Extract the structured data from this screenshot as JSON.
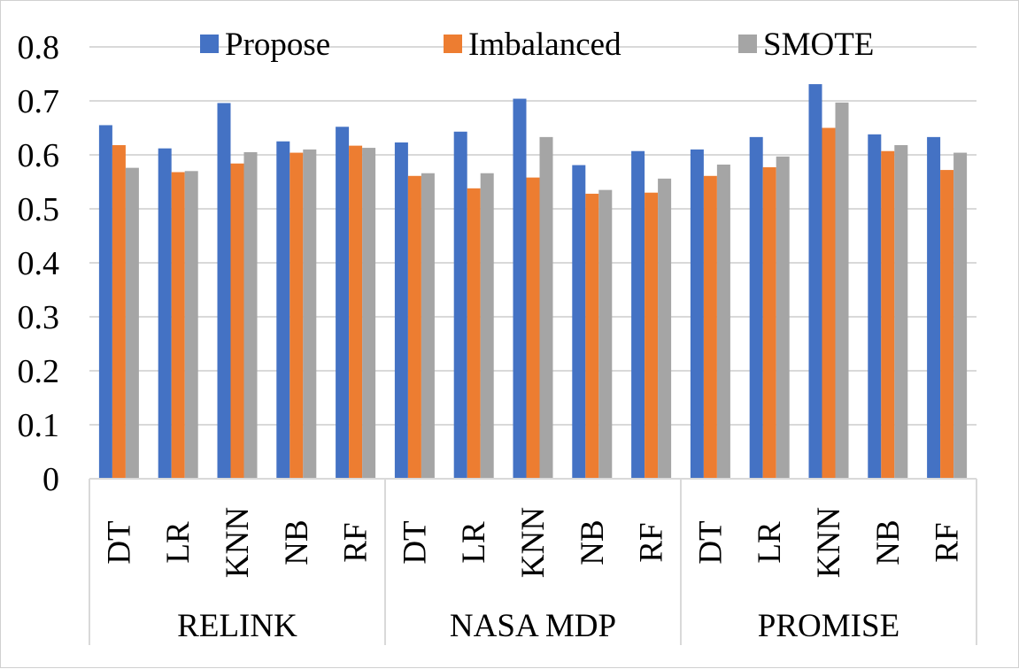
{
  "chart_data": {
    "type": "bar",
    "title": "",
    "xlabel": "",
    "ylabel": "",
    "ylim": [
      0,
      0.8
    ],
    "yticks": [
      "0",
      "0.1",
      "0.2",
      "0.3",
      "0.4",
      "0.5",
      "0.6",
      "0.7",
      "0.8"
    ],
    "ytick_values": [
      0,
      0.1,
      0.2,
      0.3,
      0.4,
      0.5,
      0.6,
      0.7,
      0.8
    ],
    "grid": true,
    "legend_position": "top",
    "groups": [
      {
        "label": "RELINK",
        "categories": [
          "DT",
          "LR",
          "KNN",
          "NB",
          "RF"
        ]
      },
      {
        "label": "NASA MDP",
        "categories": [
          "DT",
          "LR",
          "KNN",
          "NB",
          "RF"
        ]
      },
      {
        "label": "PROMISE",
        "categories": [
          "DT",
          "LR",
          "KNN",
          "NB",
          "RF"
        ]
      }
    ],
    "series": [
      {
        "name": "Propose",
        "color": "#4472C4",
        "values": [
          0.655,
          0.612,
          0.696,
          0.625,
          0.652,
          0.623,
          0.643,
          0.704,
          0.581,
          0.607,
          0.61,
          0.633,
          0.731,
          0.638,
          0.633
        ]
      },
      {
        "name": "Imbalanced",
        "color": "#ED7D31",
        "values": [
          0.618,
          0.568,
          0.584,
          0.604,
          0.617,
          0.561,
          0.538,
          0.558,
          0.528,
          0.53,
          0.561,
          0.577,
          0.65,
          0.607,
          0.572
        ]
      },
      {
        "name": "SMOTE",
        "color": "#A5A5A5",
        "values": [
          0.576,
          0.57,
          0.605,
          0.61,
          0.613,
          0.566,
          0.566,
          0.633,
          0.535,
          0.556,
          0.582,
          0.597,
          0.697,
          0.618,
          0.604
        ]
      }
    ]
  }
}
